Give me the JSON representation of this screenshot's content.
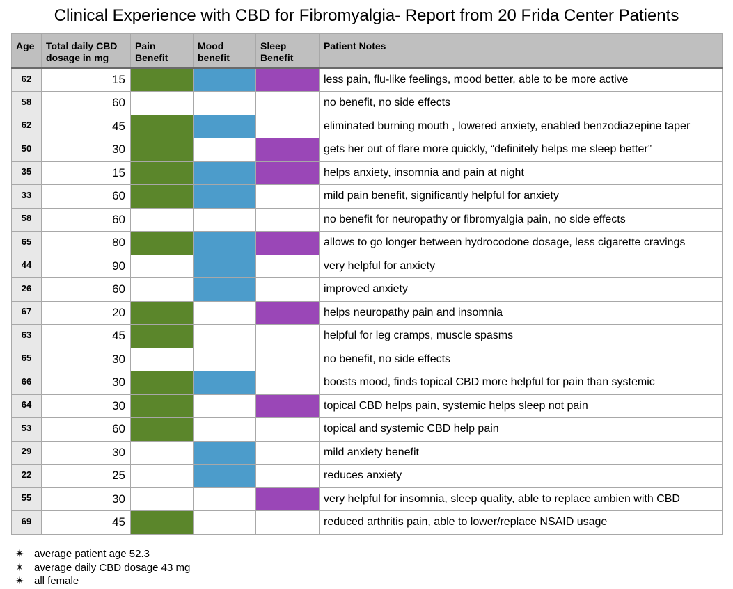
{
  "title": "Clinical Experience with CBD for Fibromyalgia- Report from 20 Frida Center Patients",
  "colors": {
    "pain": "#5b862b",
    "mood": "#4c9ccb",
    "sleep": "#9a47b7",
    "header_bg": "#bfbfbf"
  },
  "columns": {
    "age": "Age",
    "dose_line1": "Total daily CBD",
    "dose_line2": "dosage in mg",
    "pain_line1": "Pain",
    "pain_line2": "Benefit",
    "mood_line1": "Mood",
    "mood_line2": "benefit",
    "sleep_line1": "Sleep",
    "sleep_line2": "Benefit",
    "notes": "Patient Notes"
  },
  "rows": [
    {
      "age": "62",
      "dose": "15",
      "pain": true,
      "mood": true,
      "sleep": true,
      "note": "less pain, flu-like feelings, mood better, able to be more active"
    },
    {
      "age": "58",
      "dose": "60",
      "pain": false,
      "mood": false,
      "sleep": false,
      "note": "no benefit, no side effects"
    },
    {
      "age": "62",
      "dose": "45",
      "pain": true,
      "mood": true,
      "sleep": false,
      "note": "eliminated burning mouth , lowered anxiety, enabled benzodiazepine taper"
    },
    {
      "age": "50",
      "dose": "30",
      "pain": true,
      "mood": false,
      "sleep": true,
      "note": "gets her out of flare more quickly, “definitely helps me sleep better”"
    },
    {
      "age": "35",
      "dose": "15",
      "pain": true,
      "mood": true,
      "sleep": true,
      "note": "helps anxiety, insomnia and pain at night"
    },
    {
      "age": "33",
      "dose": "60",
      "pain": true,
      "mood": true,
      "sleep": false,
      "note": "mild pain benefit, significantly helpful for anxiety"
    },
    {
      "age": "58",
      "dose": "60",
      "pain": false,
      "mood": false,
      "sleep": false,
      "note": "no benefit for neuropathy or fibromyalgia pain, no side effects"
    },
    {
      "age": "65",
      "dose": "80",
      "pain": true,
      "mood": true,
      "sleep": true,
      "note": "allows to go longer between hydrocodone dosage, less cigarette cravings"
    },
    {
      "age": "44",
      "dose": "90",
      "pain": false,
      "mood": true,
      "sleep": false,
      "note": "very helpful for anxiety"
    },
    {
      "age": "26",
      "dose": "60",
      "pain": false,
      "mood": true,
      "sleep": false,
      "note": "improved anxiety"
    },
    {
      "age": "67",
      "dose": "20",
      "pain": true,
      "mood": false,
      "sleep": true,
      "note": "helps neuropathy pain and insomnia"
    },
    {
      "age": "63",
      "dose": "45",
      "pain": true,
      "mood": false,
      "sleep": false,
      "note": "helpful for leg cramps, muscle spasms"
    },
    {
      "age": "65",
      "dose": "30",
      "pain": false,
      "mood": false,
      "sleep": false,
      "note": "no benefit, no side effects"
    },
    {
      "age": "66",
      "dose": "30",
      "pain": true,
      "mood": true,
      "sleep": false,
      "note": "boosts mood, finds topical CBD more helpful for pain than systemic"
    },
    {
      "age": "64",
      "dose": "30",
      "pain": true,
      "mood": false,
      "sleep": true,
      "note": "topical CBD helps pain, systemic helps sleep not pain"
    },
    {
      "age": "53",
      "dose": "60",
      "pain": true,
      "mood": false,
      "sleep": false,
      "note": "topical and systemic CBD help pain"
    },
    {
      "age": "29",
      "dose": "30",
      "pain": false,
      "mood": true,
      "sleep": false,
      "note": "mild anxiety benefit"
    },
    {
      "age": "22",
      "dose": "25",
      "pain": false,
      "mood": true,
      "sleep": false,
      "note": "reduces anxiety"
    },
    {
      "age": "55",
      "dose": "30",
      "pain": false,
      "mood": false,
      "sleep": true,
      "note": "very helpful for insomnia, sleep quality, able to replace ambien with CBD"
    },
    {
      "age": "69",
      "dose": "45",
      "pain": true,
      "mood": false,
      "sleep": false,
      "note": "reduced arthritis pain, able to lower/replace NSAID usage"
    }
  ],
  "summary": [
    "average patient age 52.3",
    "average daily CBD dosage 43 mg",
    "all female"
  ]
}
